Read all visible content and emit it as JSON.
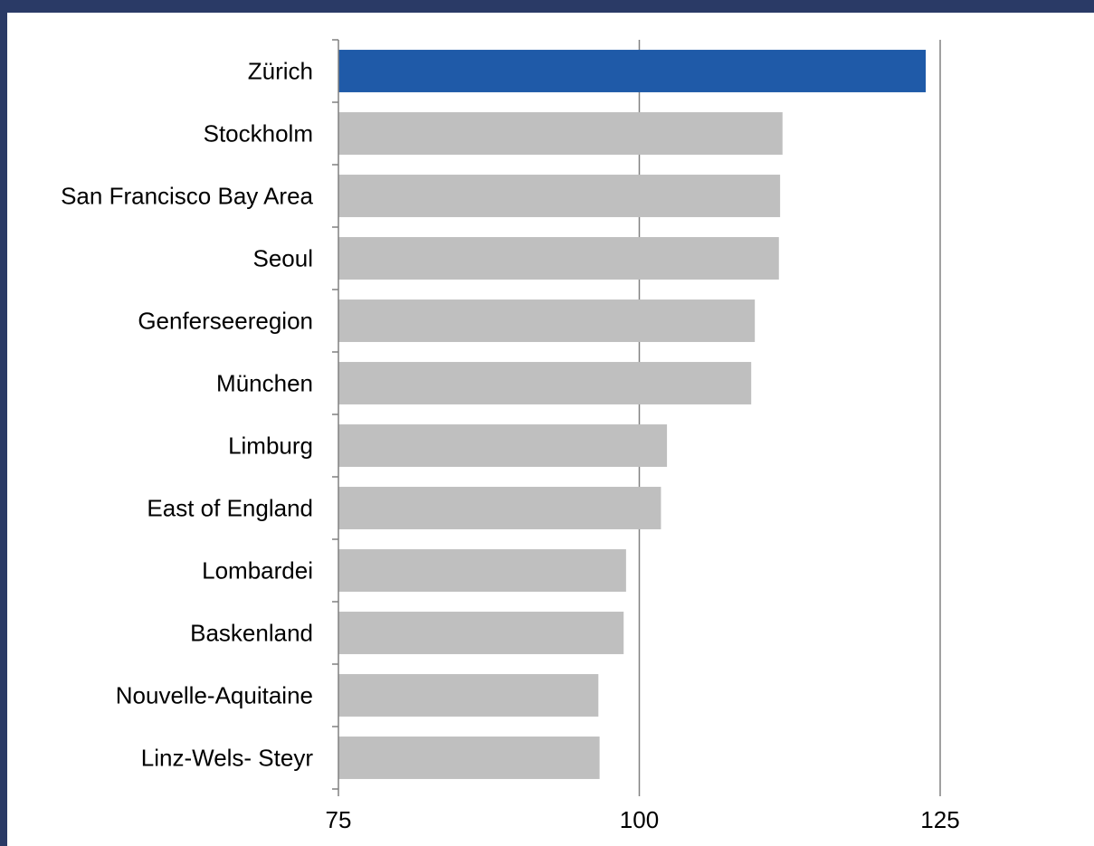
{
  "chart_data": {
    "type": "bar",
    "orientation": "horizontal",
    "categories": [
      "Zürich",
      "Stockholm",
      "San Francisco Bay Area",
      "Seoul",
      "Genferseeregion",
      "München",
      "Limburg",
      "East of England",
      "Lombardei",
      "Baskenland",
      "Nouvelle-Aquitaine",
      "Linz-Wels- Steyr"
    ],
    "values": [
      123.8,
      111.9,
      111.7,
      111.6,
      109.6,
      109.3,
      102.3,
      101.8,
      98.9,
      98.7,
      96.6,
      96.7
    ],
    "highlight_index": 0,
    "colors": {
      "highlight": "#1f5aa8",
      "default": "#bfbfbf",
      "grid": "#808080",
      "axis": "#808080"
    },
    "xlim": [
      75,
      125
    ],
    "xticks": [
      "75",
      "100",
      "125"
    ],
    "grid": "vertical",
    "title": "",
    "xlabel": "",
    "ylabel": ""
  }
}
